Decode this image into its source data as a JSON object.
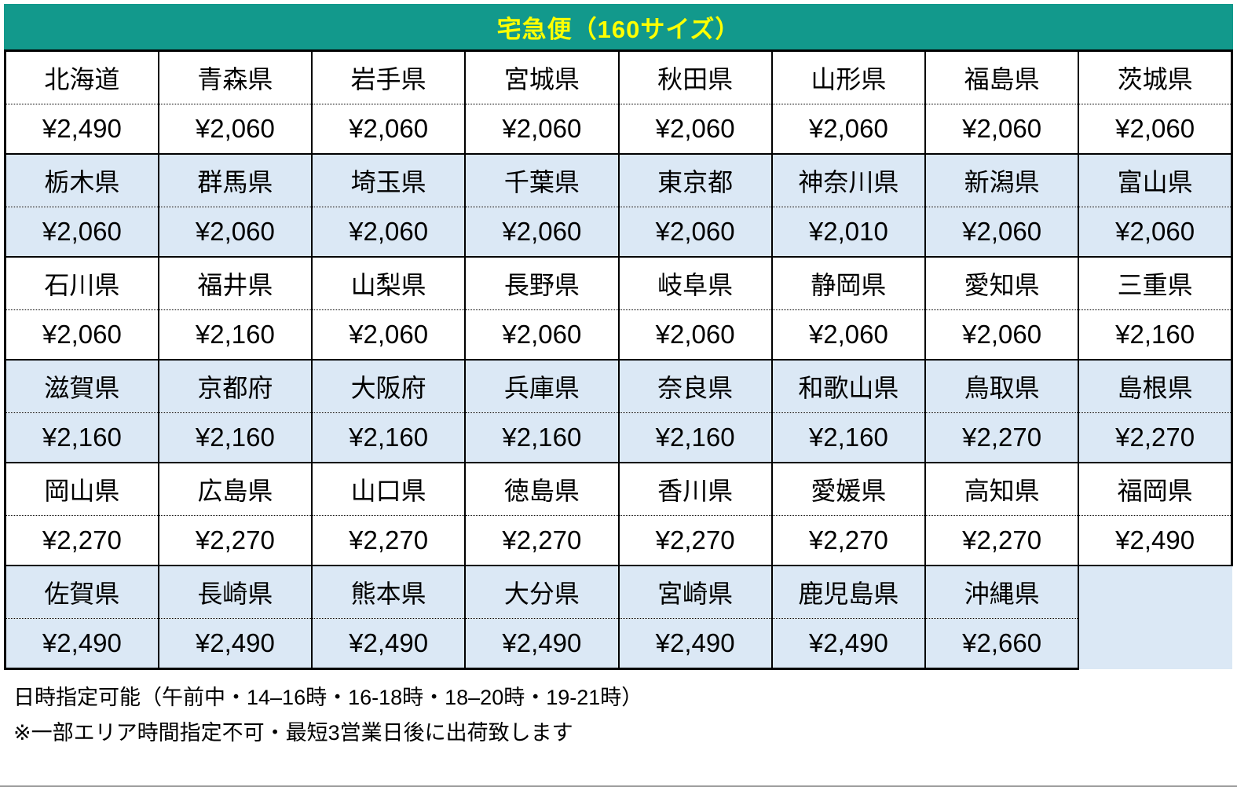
{
  "header": {
    "title": "宅急便（160サイズ）"
  },
  "colors": {
    "header_bg": "#12998c",
    "header_text": "#ffff00",
    "alt_row_bg": "#dbe8f5",
    "border": "#000000"
  },
  "table": {
    "columns": 8,
    "groups": [
      {
        "bg": "white",
        "cells": [
          {
            "prefecture": "北海道",
            "price": "¥2,490"
          },
          {
            "prefecture": "青森県",
            "price": "¥2,060"
          },
          {
            "prefecture": "岩手県",
            "price": "¥2,060"
          },
          {
            "prefecture": "宮城県",
            "price": "¥2,060"
          },
          {
            "prefecture": "秋田県",
            "price": "¥2,060"
          },
          {
            "prefecture": "山形県",
            "price": "¥2,060"
          },
          {
            "prefecture": "福島県",
            "price": "¥2,060"
          },
          {
            "prefecture": "茨城県",
            "price": "¥2,060"
          }
        ]
      },
      {
        "bg": "blue",
        "cells": [
          {
            "prefecture": "栃木県",
            "price": "¥2,060"
          },
          {
            "prefecture": "群馬県",
            "price": "¥2,060"
          },
          {
            "prefecture": "埼玉県",
            "price": "¥2,060"
          },
          {
            "prefecture": "千葉県",
            "price": "¥2,060"
          },
          {
            "prefecture": "東京都",
            "price": "¥2,060"
          },
          {
            "prefecture": "神奈川県",
            "price": "¥2,010"
          },
          {
            "prefecture": "新潟県",
            "price": "¥2,060"
          },
          {
            "prefecture": "富山県",
            "price": "¥2,060"
          }
        ]
      },
      {
        "bg": "white",
        "cells": [
          {
            "prefecture": "石川県",
            "price": "¥2,060"
          },
          {
            "prefecture": "福井県",
            "price": "¥2,160"
          },
          {
            "prefecture": "山梨県",
            "price": "¥2,060"
          },
          {
            "prefecture": "長野県",
            "price": "¥2,060"
          },
          {
            "prefecture": "岐阜県",
            "price": "¥2,060"
          },
          {
            "prefecture": "静岡県",
            "price": "¥2,060"
          },
          {
            "prefecture": "愛知県",
            "price": "¥2,060"
          },
          {
            "prefecture": "三重県",
            "price": "¥2,160"
          }
        ]
      },
      {
        "bg": "blue",
        "cells": [
          {
            "prefecture": "滋賀県",
            "price": "¥2,160"
          },
          {
            "prefecture": "京都府",
            "price": "¥2,160"
          },
          {
            "prefecture": "大阪府",
            "price": "¥2,160"
          },
          {
            "prefecture": "兵庫県",
            "price": "¥2,160"
          },
          {
            "prefecture": "奈良県",
            "price": "¥2,160"
          },
          {
            "prefecture": "和歌山県",
            "price": "¥2,160"
          },
          {
            "prefecture": "鳥取県",
            "price": "¥2,270"
          },
          {
            "prefecture": "島根県",
            "price": "¥2,270"
          }
        ]
      },
      {
        "bg": "white",
        "cells": [
          {
            "prefecture": "岡山県",
            "price": "¥2,270"
          },
          {
            "prefecture": "広島県",
            "price": "¥2,270"
          },
          {
            "prefecture": "山口県",
            "price": "¥2,270"
          },
          {
            "prefecture": "徳島県",
            "price": "¥2,270"
          },
          {
            "prefecture": "香川県",
            "price": "¥2,270"
          },
          {
            "prefecture": "愛媛県",
            "price": "¥2,270"
          },
          {
            "prefecture": "高知県",
            "price": "¥2,270"
          },
          {
            "prefecture": "福岡県",
            "price": "¥2,490"
          }
        ]
      },
      {
        "bg": "blue",
        "cells": [
          {
            "prefecture": "佐賀県",
            "price": "¥2,490"
          },
          {
            "prefecture": "長崎県",
            "price": "¥2,490"
          },
          {
            "prefecture": "熊本県",
            "price": "¥2,490"
          },
          {
            "prefecture": "大分県",
            "price": "¥2,490"
          },
          {
            "prefecture": "宮崎県",
            "price": "¥2,490"
          },
          {
            "prefecture": "鹿児島県",
            "price": "¥2,490"
          },
          {
            "prefecture": "沖縄県",
            "price": "¥2,660"
          },
          null
        ]
      }
    ]
  },
  "footer": {
    "line1": "日時指定可能（午前中・14–16時・16-18時・18–20時・19-21時）",
    "line2": "※一部エリア時間指定不可・最短3営業日後に出荷致します"
  }
}
